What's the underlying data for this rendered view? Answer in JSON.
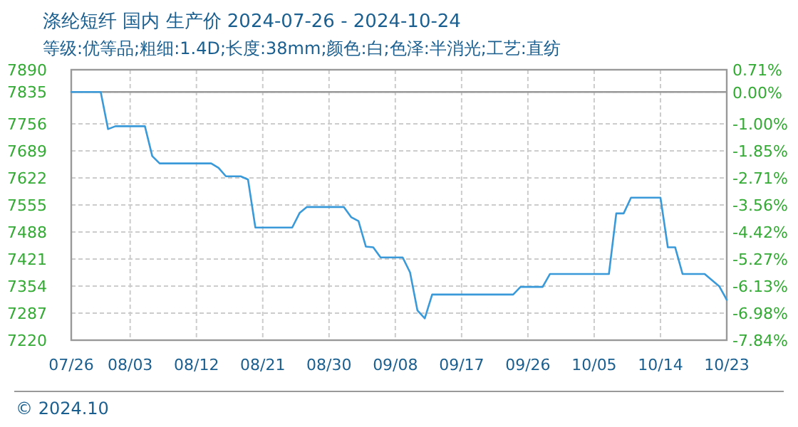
{
  "chart_data": {
    "type": "line",
    "title": "涤纶短纤 国内 生产价 2024-07-26 - 2024-10-24",
    "subtitle": "等级:优等品;粗细:1.4D;长度:38mm;颜色:白;色泽:半消光;工艺:直纺",
    "annotations": [
      "© 2024.10"
    ],
    "x": [
      "2024-07-26",
      "2024-07-30",
      "2024-07-31",
      "2024-08-01",
      "2024-08-05",
      "2024-08-06",
      "2024-08-07",
      "2024-08-14",
      "2024-08-15",
      "2024-08-16",
      "2024-08-18",
      "2024-08-19",
      "2024-08-20",
      "2024-08-25",
      "2024-08-26",
      "2024-08-27",
      "2024-09-01",
      "2024-09-02",
      "2024-09-03",
      "2024-09-04",
      "2024-09-05",
      "2024-09-06",
      "2024-09-09",
      "2024-09-10",
      "2024-09-11",
      "2024-09-12",
      "2024-09-13",
      "2024-09-24",
      "2024-09-25",
      "2024-09-28",
      "2024-09-29",
      "2024-10-07",
      "2024-10-08",
      "2024-10-09",
      "2024-10-10",
      "2024-10-14",
      "2024-10-15",
      "2024-10-16",
      "2024-10-17",
      "2024-10-20",
      "2024-10-22",
      "2024-10-23"
    ],
    "series": [
      {
        "color": "#3a9ad9",
        "values": [
          7835,
          7835,
          7743,
          7750,
          7750,
          7676,
          7658,
          7658,
          7647,
          7626,
          7626,
          7618,
          7499,
          7499,
          7535,
          7550,
          7550,
          7525,
          7515,
          7452,
          7450,
          7425,
          7425,
          7388,
          7294,
          7274,
          7333,
          7333,
          7352,
          7352,
          7384,
          7384,
          7534,
          7534,
          7573,
          7573,
          7450,
          7450,
          7384,
          7384,
          7353,
          7320
        ]
      }
    ],
    "xlim": [
      "2024-07-26",
      "2024-10-23"
    ],
    "xticks": [
      {
        "value": "2024-07-26",
        "label": "07/26"
      },
      {
        "value": "2024-08-03",
        "label": "08/03"
      },
      {
        "value": "2024-08-12",
        "label": "08/12"
      },
      {
        "value": "2024-08-21",
        "label": "08/21"
      },
      {
        "value": "2024-08-30",
        "label": "08/30"
      },
      {
        "value": "2024-09-08",
        "label": "09/08"
      },
      {
        "value": "2024-09-17",
        "label": "09/17"
      },
      {
        "value": "2024-09-26",
        "label": "09/26"
      },
      {
        "value": "2024-10-05",
        "label": "10/05"
      },
      {
        "value": "2024-10-14",
        "label": "10/14"
      },
      {
        "value": "2024-10-23",
        "label": "10/23"
      }
    ],
    "ylim": [
      7220,
      7890
    ],
    "yticks": [
      7220,
      7287,
      7354,
      7421,
      7488,
      7555,
      7622,
      7689,
      7756,
      7835,
      7890
    ],
    "y2lim": [
      -7.84,
      0.71
    ],
    "y2ticks": [
      {
        "value": -7.84,
        "label": "-7.84%"
      },
      {
        "value": -6.98,
        "label": "-6.98%"
      },
      {
        "value": -6.13,
        "label": "-6.13%"
      },
      {
        "value": -5.27,
        "label": "-5.27%"
      },
      {
        "value": -4.42,
        "label": "-4.42%"
      },
      {
        "value": -3.56,
        "label": "-3.56%"
      },
      {
        "value": -2.71,
        "label": "-2.71%"
      },
      {
        "value": -1.85,
        "label": "-1.85%"
      },
      {
        "value": -1.0,
        "label": "-1.00%"
      },
      {
        "value": 0.0,
        "label": "0.00%"
      },
      {
        "value": 0.71,
        "label": "0.71%"
      }
    ],
    "ref_lines": [
      {
        "axis": "y",
        "value": 7835,
        "color": "#999999",
        "line_style": "solid"
      }
    ],
    "grid": true,
    "marker": "none",
    "line_style": "solid"
  }
}
